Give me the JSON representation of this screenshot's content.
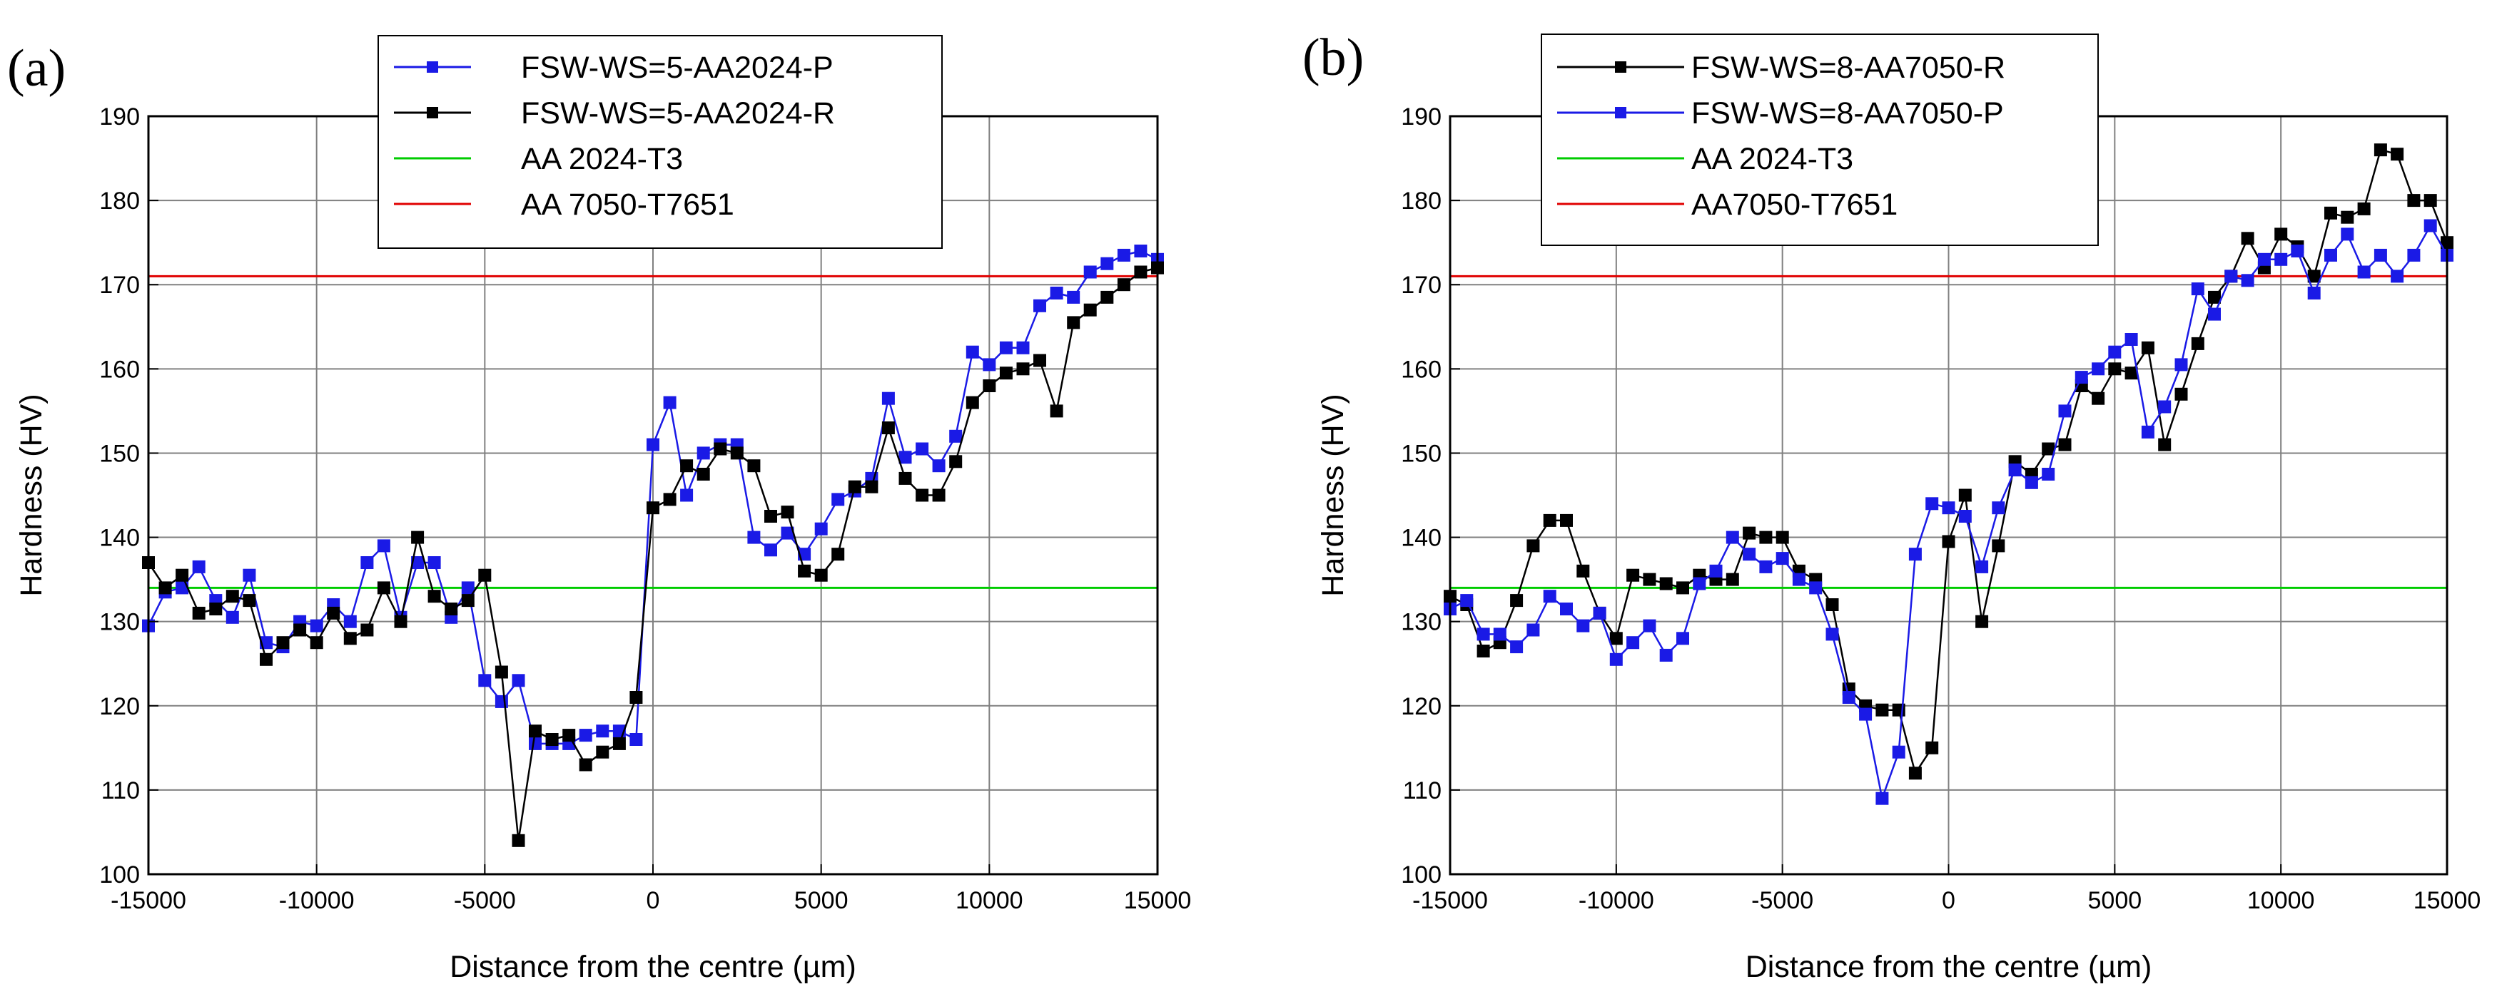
{
  "colors": {
    "black_series": "#000000",
    "blue_series": "#1a1ae6",
    "green_line": "#00cc00",
    "red_line": "#e00000",
    "grid": "#808080"
  },
  "chart_data": [
    {
      "panel_label": "(a)",
      "type": "line",
      "xlabel": "Distance from the centre (µm)",
      "ylabel": "Hardness (HV)",
      "xlim": [
        -15000,
        15000
      ],
      "ylim": [
        100,
        190
      ],
      "xticks": [
        -15000,
        -10000,
        -5000,
        0,
        5000,
        10000,
        15000
      ],
      "yticks": [
        100,
        110,
        120,
        130,
        140,
        150,
        160,
        170,
        180,
        190
      ],
      "xtick_labels": [
        "-15000",
        "-10000",
        "-5000",
        "0",
        "5000",
        "10000",
        "15000"
      ],
      "ytick_labels": [
        "100",
        "110",
        "120",
        "130",
        "140",
        "150",
        "160",
        "170",
        "180",
        "190"
      ],
      "grid": true,
      "legend_position": "top-center",
      "series": [
        {
          "name": "FSW-WS=5-AA2024-P",
          "color": "#1a1ae6",
          "marker": "square",
          "x": [
            -15000,
            -14500,
            -14000,
            -13500,
            -13000,
            -12500,
            -12000,
            -11500,
            -11000,
            -10500,
            -10000,
            -9500,
            -9000,
            -8500,
            -8000,
            -7500,
            -7000,
            -6500,
            -6000,
            -5500,
            -5000,
            -4500,
            -4000,
            -3500,
            -3000,
            -2500,
            -2000,
            -1500,
            -1000,
            -500,
            0,
            500,
            1000,
            1500,
            2000,
            2500,
            3000,
            3500,
            4000,
            4500,
            5000,
            5500,
            6000,
            6500,
            7000,
            7500,
            8000,
            8500,
            9000,
            9500,
            10000,
            10500,
            11000,
            11500,
            12000,
            12500,
            13000,
            13500,
            14000,
            14500,
            15000
          ],
          "y": [
            129.5,
            133.5,
            134,
            136.5,
            132.5,
            130.5,
            135.5,
            127.5,
            127,
            130,
            129.5,
            132,
            130,
            137,
            139,
            130.5,
            137,
            137,
            130.5,
            134,
            123,
            120.5,
            123,
            115.5,
            115.5,
            115.5,
            116.5,
            117,
            117,
            116,
            151,
            156,
            145,
            150,
            151,
            151,
            140,
            138.5,
            140.5,
            138,
            141,
            144.5,
            145.5,
            147,
            156.5,
            149.5,
            150.5,
            148.5,
            152,
            162,
            160.5,
            162.5,
            162.5,
            167.5,
            169,
            168.5,
            171.5,
            172.5,
            173.5,
            174,
            173
          ]
        },
        {
          "name": "FSW-WS=5-AA2024-R",
          "color": "#000000",
          "marker": "square",
          "x": [
            -15000,
            -14500,
            -14000,
            -13500,
            -13000,
            -12500,
            -12000,
            -11500,
            -11000,
            -10500,
            -10000,
            -9500,
            -9000,
            -8500,
            -8000,
            -7500,
            -7000,
            -6500,
            -6000,
            -5500,
            -5000,
            -4500,
            -4000,
            -3500,
            -3000,
            -2500,
            -2000,
            -1500,
            -1000,
            -500,
            0,
            500,
            1000,
            1500,
            2000,
            2500,
            3000,
            3500,
            4000,
            4500,
            5000,
            5500,
            6000,
            6500,
            7000,
            7500,
            8000,
            8500,
            9000,
            9500,
            10000,
            10500,
            11000,
            11500,
            12000,
            12500,
            13000,
            13500,
            14000,
            14500,
            15000
          ],
          "y": [
            137,
            134,
            135.5,
            131,
            131.5,
            133,
            132.5,
            125.5,
            127.5,
            129,
            127.5,
            131,
            128,
            129,
            134,
            130,
            140,
            133,
            131.5,
            132.5,
            135.5,
            124,
            104,
            117,
            116,
            116.5,
            113,
            114.5,
            115.5,
            121,
            143.5,
            144.5,
            148.5,
            147.5,
            150.5,
            150,
            148.5,
            142.5,
            143,
            136,
            135.5,
            138,
            146,
            146,
            153,
            147,
            145,
            145,
            149,
            156,
            158,
            159.5,
            160,
            161,
            155,
            165.5,
            167,
            168.5,
            170,
            171.5,
            172
          ]
        }
      ],
      "reference_lines": [
        {
          "name": "AA 2024-T3",
          "color": "#00cc00",
          "y": 134
        },
        {
          "name": "AA 7050-T7651",
          "color": "#e00000",
          "y": 171
        }
      ]
    },
    {
      "panel_label": "(b)",
      "type": "line",
      "xlabel": "Distance from the centre (µm)",
      "ylabel": "Hardness (HV)",
      "xlim": [
        -15000,
        15000
      ],
      "ylim": [
        100,
        190
      ],
      "xticks": [
        -15000,
        -10000,
        -5000,
        0,
        5000,
        10000,
        15000
      ],
      "yticks": [
        100,
        110,
        120,
        130,
        140,
        150,
        160,
        170,
        180,
        190
      ],
      "xtick_labels": [
        "-15000",
        "-10000",
        "-5000",
        "0",
        "5000",
        "10000",
        "15000"
      ],
      "ytick_labels": [
        "100",
        "110",
        "120",
        "130",
        "140",
        "150",
        "160",
        "170",
        "180",
        "190"
      ],
      "grid": true,
      "legend_position": "top-center",
      "series": [
        {
          "name": "FSW-WS=8-AA7050-R",
          "color": "#000000",
          "marker": "square",
          "x": [
            -15000,
            -14500,
            -14000,
            -13500,
            -13000,
            -12500,
            -12000,
            -11500,
            -11000,
            -10500,
            -10000,
            -9500,
            -9000,
            -8500,
            -8000,
            -7500,
            -7000,
            -6500,
            -6000,
            -5500,
            -5000,
            -4500,
            -4000,
            -3500,
            -3000,
            -2500,
            -2000,
            -1500,
            -1000,
            -500,
            0,
            500,
            1000,
            1500,
            2000,
            2500,
            3000,
            3500,
            4000,
            4500,
            5000,
            5500,
            6000,
            6500,
            7000,
            7500,
            8000,
            8500,
            9000,
            9500,
            10000,
            10500,
            11000,
            11500,
            12000,
            12500,
            13000,
            13500,
            14000,
            14500,
            15000
          ],
          "y": [
            133,
            132,
            126.5,
            127.5,
            132.5,
            139,
            142,
            142,
            136,
            131,
            128,
            135.5,
            135,
            134.5,
            134,
            135.5,
            135,
            135,
            140.5,
            140,
            140,
            136,
            135,
            132,
            122,
            120,
            119.5,
            119.5,
            112,
            115,
            139.5,
            145,
            130,
            139,
            149,
            147.5,
            150.5,
            151,
            158,
            156.5,
            160,
            159.5,
            162.5,
            151,
            157,
            163,
            168.5,
            171,
            175.5,
            172,
            176,
            174.5,
            171,
            178.5,
            178,
            179,
            186,
            185.5,
            180,
            180,
            175
          ]
        },
        {
          "name": "FSW-WS=8-AA7050-P",
          "color": "#1a1ae6",
          "marker": "square",
          "x": [
            -15000,
            -14500,
            -14000,
            -13500,
            -13000,
            -12500,
            -12000,
            -11500,
            -11000,
            -10500,
            -10000,
            -9500,
            -9000,
            -8500,
            -8000,
            -7500,
            -7000,
            -6500,
            -6000,
            -5500,
            -5000,
            -4500,
            -4000,
            -3500,
            -3000,
            -2500,
            -2000,
            -1500,
            -1000,
            -500,
            0,
            500,
            1000,
            1500,
            2000,
            2500,
            3000,
            3500,
            4000,
            4500,
            5000,
            5500,
            6000,
            6500,
            7000,
            7500,
            8000,
            8500,
            9000,
            9500,
            10000,
            10500,
            11000,
            11500,
            12000,
            12500,
            13000,
            13500,
            14000,
            14500,
            15000
          ],
          "y": [
            131.5,
            132.5,
            128.5,
            128.5,
            127,
            129,
            133,
            131.5,
            129.5,
            131,
            125.5,
            127.5,
            129.5,
            126,
            128,
            134.5,
            136,
            140,
            138,
            136.5,
            137.5,
            135,
            134,
            128.5,
            121,
            119,
            109,
            114.5,
            138,
            144,
            143.5,
            142.5,
            136.5,
            143.5,
            148,
            146.5,
            147.5,
            155,
            159,
            160,
            162,
            163.5,
            152.5,
            155.5,
            160.5,
            169.5,
            166.5,
            171,
            170.5,
            173,
            173,
            174,
            169,
            173.5,
            176,
            171.5,
            173.5,
            171,
            173.5,
            177,
            173.5
          ]
        }
      ],
      "reference_lines": [
        {
          "name": "AA 2024-T3",
          "color": "#00cc00",
          "y": 134
        },
        {
          "name": "AA7050-T7651",
          "color": "#e00000",
          "y": 171
        }
      ]
    }
  ]
}
